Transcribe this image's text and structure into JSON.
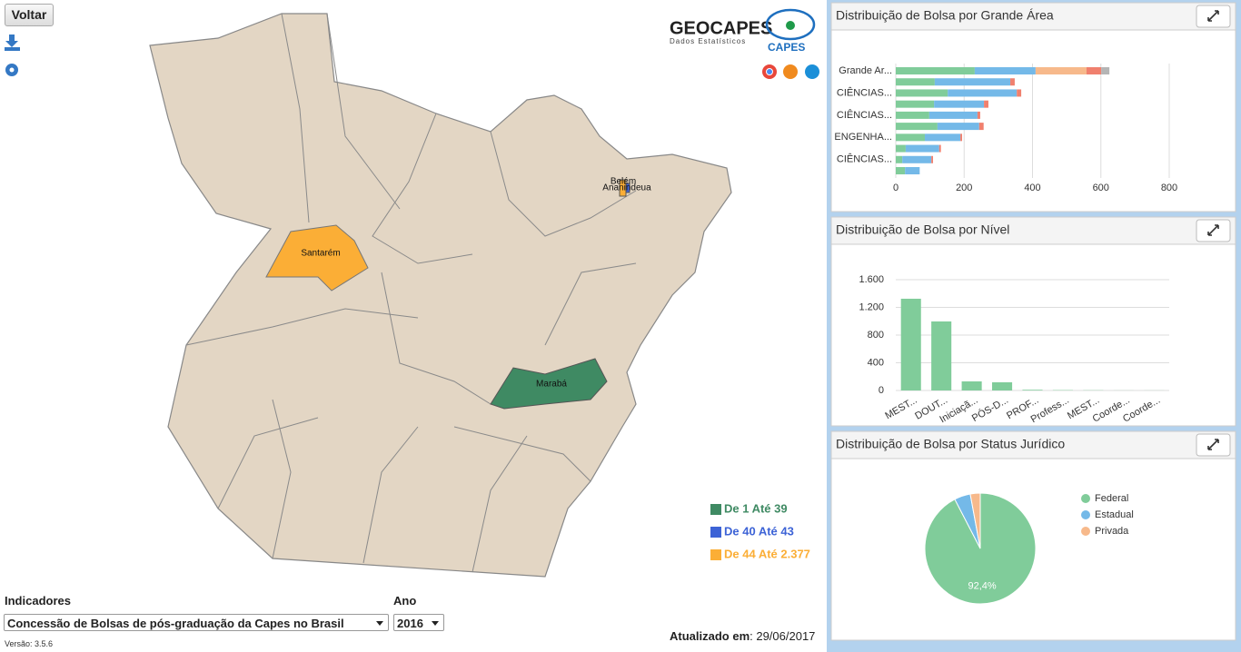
{
  "ui": {
    "back_button": "Voltar",
    "logo_name": "GEOCAPES",
    "logo_subtitle": "Dados Estatísticos",
    "logo_capes": "CAPES",
    "map_labels": [
      "Santarém",
      "Marabá",
      "Belém",
      "Ananindeua"
    ],
    "map_legend": [
      {
        "label": "De 1 Até 39",
        "color": "#3f8a63"
      },
      {
        "label": "De 40 Até 43",
        "color": "#3d63d6"
      },
      {
        "label": "De 44 Até 2.377",
        "color": "#fbae36"
      }
    ],
    "indicators_label": "Indicadores",
    "indicator_value": "Concessão de Bolsas de pós-graduação da Capes no Brasil",
    "year_label": "Ano",
    "year_value": "2016",
    "version": "Versão: 3.5.6",
    "updated_label": "Atualizado em",
    "updated_value": ": 29/06/2017"
  },
  "chart_data": [
    {
      "type": "bar",
      "orientation": "horizontal",
      "stacked": true,
      "title": "Distribuição de Bolsa por Grande Área",
      "categories": [
        "Grande Ar...",
        null,
        "CIÊNCIAS...",
        null,
        "CIÊNCIAS...",
        null,
        "ENGENHA...",
        null,
        "CIÊNCIAS...",
        null
      ],
      "series": [
        {
          "color": "#80cc9a",
          "values": [
            231,
            114,
            152,
            112,
            98,
            122,
            85,
            29,
            19,
            27
          ]
        },
        {
          "color": "#74b9e8",
          "values": [
            178,
            221,
            202,
            146,
            141,
            122,
            104,
            98,
            85,
            43
          ]
        },
        {
          "color": "#f7b98b",
          "values": [
            149,
            0,
            0,
            0,
            0,
            0,
            0,
            0,
            0,
            0
          ]
        },
        {
          "color": "#f0806e",
          "values": [
            43,
            13,
            13,
            13,
            8,
            13,
            5,
            5,
            5,
            0
          ]
        },
        {
          "color": "#b5b5b5",
          "values": [
            24,
            0,
            0,
            0,
            0,
            0,
            0,
            0,
            0,
            0
          ]
        }
      ],
      "xlim": [
        0,
        800
      ],
      "xticks": [
        0,
        200,
        400,
        600,
        800
      ],
      "grid": true
    },
    {
      "type": "bar",
      "title": "Distribuição de Bolsa por Nível",
      "categories": [
        "MEST...",
        "DOUT...",
        "Iniciaçã...",
        "PÓS-D...",
        "PROF...",
        "Profess...",
        "MEST...",
        "Coorde...",
        "Coorde..."
      ],
      "values": [
        1325,
        997,
        131,
        118,
        10,
        5,
        3,
        1,
        1
      ],
      "color": "#80cc9a",
      "ylim": [
        0,
        1600
      ],
      "yticks": [
        0,
        400,
        800,
        {
          "value": 1200,
          "label": "1.200"
        },
        {
          "value": 1600,
          "label": "1.600"
        }
      ],
      "grid": true
    },
    {
      "type": "pie",
      "title": "Distribuição de Bolsa por Status Jurídico",
      "categories": [
        "Federal",
        "Estadual",
        "Privada"
      ],
      "values": [
        92.4,
        4.7,
        2.9
      ],
      "value_labels": [
        "92,4%",
        null,
        null
      ],
      "colors": [
        "#80cc9a",
        "#74b9e8",
        "#f7b98b"
      ]
    }
  ]
}
